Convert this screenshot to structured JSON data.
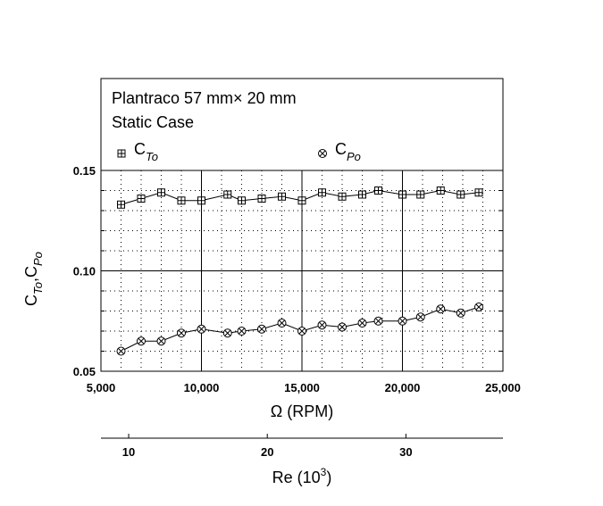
{
  "chart_data": {
    "type": "scatter",
    "title_lines": [
      "Plantraco 57 mm× 20 mm",
      "Static Case"
    ],
    "xlabel": "Ω (RPM)",
    "xlim": [
      5000,
      25000
    ],
    "x_ticks": [
      5000,
      10000,
      15000,
      20000,
      25000
    ],
    "x_tick_labels": [
      "5,000",
      "10,000",
      "15,000",
      "20,000",
      "25,000"
    ],
    "ylabel": "C_To, C_Po",
    "ylabel_parts": {
      "c1": "C",
      "s1": "To",
      "comma": ",",
      "c2": "C",
      "s2": "Po"
    },
    "ylim": [
      0.05,
      0.15
    ],
    "y_ticks": [
      0.05,
      0.1,
      0.15
    ],
    "y_tick_labels": [
      "0.05",
      "0.10",
      "0.15"
    ],
    "grid": "dotted",
    "legend_placement": "top",
    "secondary_axis": {
      "label": "Re (10^3)",
      "label_parts": {
        "base": "Re (10",
        "sup": "3",
        "close": ")"
      },
      "ticks": [
        10,
        20,
        30
      ],
      "tick_labels": [
        "10",
        "20",
        "30"
      ],
      "min": 8,
      "max": 37
    },
    "x": [
      6000,
      7000,
      8000,
      9000,
      10000,
      11300,
      12000,
      13000,
      14000,
      15000,
      16000,
      17000,
      18000,
      18800,
      20000,
      20900,
      21900,
      22900,
      23800
    ],
    "series": [
      {
        "name": "C_To",
        "name_parts": {
          "base": "C",
          "sub": "To"
        },
        "marker": "boxed-plus",
        "values": [
          0.133,
          0.136,
          0.139,
          0.135,
          0.135,
          0.138,
          0.135,
          0.136,
          0.137,
          0.135,
          0.139,
          0.137,
          0.138,
          0.14,
          0.138,
          0.138,
          0.14,
          0.138,
          0.139
        ]
      },
      {
        "name": "C_Po",
        "name_parts": {
          "base": "C",
          "sub": "Po"
        },
        "marker": "circled-x",
        "values": [
          0.06,
          0.065,
          0.065,
          0.069,
          0.071,
          0.069,
          0.07,
          0.071,
          0.074,
          0.07,
          0.073,
          0.072,
          0.074,
          0.075,
          0.075,
          0.077,
          0.081,
          0.079,
          0.082
        ]
      }
    ],
    "colors": {
      "line": "#000000",
      "grid": "#000000",
      "background": "#ffffff"
    }
  }
}
